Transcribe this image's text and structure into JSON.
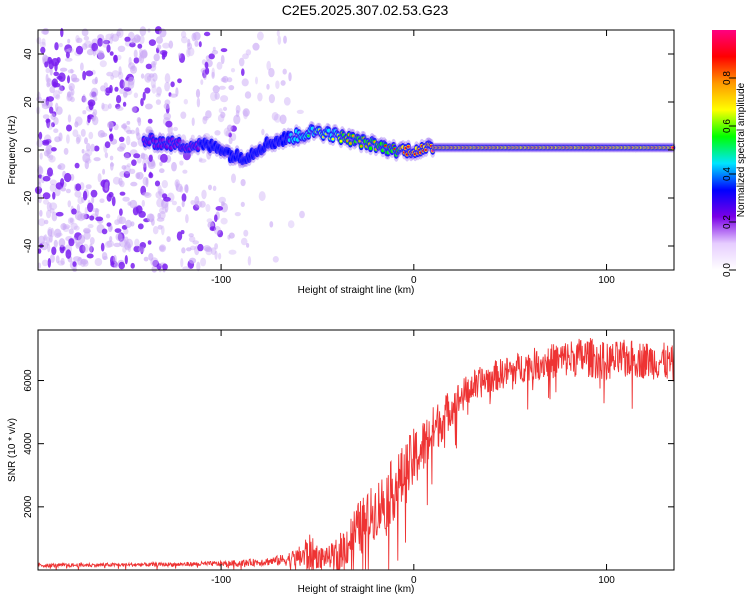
{
  "title": "C2E5.2025.307.02.53.G23",
  "chart_data": [
    {
      "type": "heatmap",
      "name": "spectrogram",
      "xlabel": "Height of straight line (km)",
      "ylabel": "Frequency (Hz)",
      "xlim": [
        -195,
        135
      ],
      "ylim": [
        -50,
        50
      ],
      "xticks": [
        -100,
        0,
        100
      ],
      "xtick_labels": [
        "-100",
        "0",
        "100"
      ],
      "yticks": [
        -40,
        -20,
        0,
        20,
        40
      ],
      "ytick_labels": [
        "-40",
        "-20",
        "0",
        "20",
        "40"
      ],
      "colorbar": {
        "label": "Normalized spectral amplitude",
        "range": [
          0,
          1
        ],
        "ticks": [
          0,
          0.2,
          0.4,
          0.6,
          0.8
        ],
        "tick_labels": [
          "0.0",
          "0.2",
          "0.4",
          "0.6",
          "0.8"
        ],
        "colors": [
          "#ffffff",
          "#e6ccff",
          "#7a00e6",
          "#0000ff",
          "#00e5ff",
          "#00ff00",
          "#ffff00",
          "#ff9900",
          "#ff0000",
          "#ff0080"
        ]
      },
      "ridge_line": {
        "description": "Doppler frequency track",
        "x": [
          -140,
          -130,
          -120,
          -110,
          -100,
          -95,
          -90,
          -85,
          -80,
          -75,
          -70,
          -65,
          -60,
          -55,
          -50,
          -45,
          -40,
          -35,
          -30,
          -25,
          -20,
          -15,
          -10,
          -5,
          0,
          5,
          10,
          20,
          40,
          60,
          80,
          100,
          120,
          135
        ],
        "y": [
          4,
          3,
          2,
          2,
          1,
          -2,
          -3,
          -2,
          1,
          3,
          4,
          5,
          6,
          7,
          8,
          7,
          6,
          5,
          4,
          3,
          2,
          1,
          0,
          0,
          0,
          0,
          1,
          1,
          1,
          1,
          1,
          1,
          1,
          1
        ],
        "amplitude": [
          0.3,
          0.3,
          0.35,
          0.4,
          0.4,
          0.45,
          0.45,
          0.5,
          0.5,
          0.5,
          0.55,
          0.55,
          0.6,
          0.6,
          0.65,
          0.65,
          0.7,
          0.75,
          0.75,
          0.8,
          0.8,
          0.85,
          0.85,
          0.9,
          0.9,
          0.9,
          0.95,
          0.95,
          0.95,
          0.95,
          0.95,
          0.95,
          0.95,
          0.95
        ]
      },
      "noise_density": {
        "x_breaks": [
          -195,
          -140,
          -100,
          -80,
          -60,
          -50
        ],
        "density": [
          1.0,
          0.8,
          0.35,
          0.15,
          0.05,
          0.0
        ]
      }
    },
    {
      "type": "line",
      "name": "snr",
      "xlabel": "Height of straight line (km)",
      "ylabel": "SNR (10 * v/v)",
      "xlim": [
        -195,
        135
      ],
      "ylim": [
        0,
        7600
      ],
      "xticks": [
        -100,
        0,
        100
      ],
      "xtick_labels": [
        "-100",
        "0",
        "100"
      ],
      "yticks": [
        2000,
        4000,
        6000
      ],
      "ytick_labels": [
        "2000",
        "4000",
        "6000"
      ],
      "series": [
        {
          "name": "SNR",
          "color": "#ee3333",
          "x": [
            -195,
            -180,
            -160,
            -140,
            -120,
            -100,
            -80,
            -70,
            -60,
            -55,
            -50,
            -45,
            -40,
            -35,
            -30,
            -25,
            -20,
            -15,
            -10,
            -5,
            0,
            5,
            10,
            15,
            20,
            25,
            30,
            40,
            50,
            60,
            70,
            80,
            90,
            100,
            110,
            120,
            130,
            135
          ],
          "y": [
            150,
            150,
            160,
            170,
            180,
            200,
            250,
            300,
            400,
            500,
            450,
            400,
            500,
            800,
            1200,
            1500,
            1900,
            2200,
            2600,
            3000,
            3500,
            3900,
            4400,
            4800,
            5200,
            5500,
            5800,
            6100,
            6300,
            6500,
            6600,
            6700,
            6750,
            6600,
            6700,
            6650,
            6600,
            6500
          ],
          "noise_amplitude": [
            60,
            60,
            60,
            60,
            70,
            80,
            120,
            160,
            300,
            700,
            400,
            300,
            500,
            700,
            900,
            900,
            900,
            1000,
            1000,
            1000,
            1000,
            900,
            800,
            700,
            600,
            550,
            500,
            500,
            500,
            500,
            550,
            600,
            650,
            600,
            600,
            600,
            600,
            600
          ]
        }
      ]
    }
  ]
}
